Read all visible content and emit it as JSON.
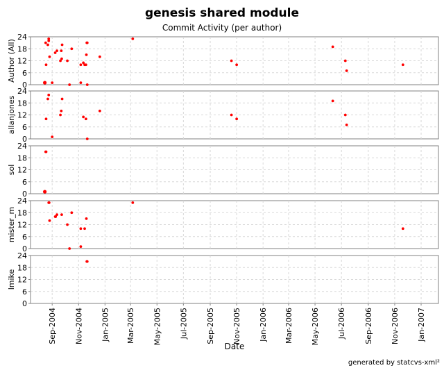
{
  "chart_data": {
    "type": "scatter",
    "title": "genesis shared module",
    "subtitle": "Commit Activity (per author)",
    "xlabel": "Date",
    "footer": "generated by statcvs-xml²",
    "x_ticks": [
      "Sep-2004",
      "Nov-2004",
      "Jan-2005",
      "Mar-2005",
      "May-2005",
      "Jul-2005",
      "Sep-2005",
      "Nov-2005",
      "Jan-2006",
      "Mar-2006",
      "May-2006",
      "Jul-2006",
      "Sep-2006",
      "Nov-2006",
      "Jan-2007"
    ],
    "x_tick_dates": [
      "2004-09-01",
      "2004-11-01",
      "2005-01-01",
      "2005-03-01",
      "2005-05-01",
      "2005-07-01",
      "2005-09-01",
      "2005-11-01",
      "2006-01-01",
      "2006-03-01",
      "2006-05-01",
      "2006-07-01",
      "2006-09-01",
      "2006-11-01",
      "2007-01-01"
    ],
    "xlim": [
      "2004-07-13",
      "2007-02-10"
    ],
    "ylim": [
      0,
      24
    ],
    "y_ticks": [
      0,
      6,
      12,
      18,
      24
    ],
    "grid": true,
    "point_color": "#ff0000",
    "panels": [
      {
        "ylabel": "Author (All)",
        "points": [
          {
            "x": "2004-08-15",
            "y": 1
          },
          {
            "x": "2004-08-15",
            "y": 1
          },
          {
            "x": "2004-08-17",
            "y": 21
          },
          {
            "x": "2004-08-18",
            "y": 10
          },
          {
            "x": "2004-08-22",
            "y": 20
          },
          {
            "x": "2004-08-24",
            "y": 22
          },
          {
            "x": "2004-08-24",
            "y": 23
          },
          {
            "x": "2004-08-26",
            "y": 14
          },
          {
            "x": "2004-09-01",
            "y": 1
          },
          {
            "x": "2004-09-08",
            "y": 16
          },
          {
            "x": "2004-09-12",
            "y": 17
          },
          {
            "x": "2004-09-20",
            "y": 12
          },
          {
            "x": "2004-09-22",
            "y": 17
          },
          {
            "x": "2004-09-23",
            "y": 13
          },
          {
            "x": "2004-09-24",
            "y": 20
          },
          {
            "x": "2004-10-06",
            "y": 12
          },
          {
            "x": "2004-10-11",
            "y": 0
          },
          {
            "x": "2004-10-16",
            "y": 18
          },
          {
            "x": "2004-11-06",
            "y": 10
          },
          {
            "x": "2004-11-06",
            "y": 1
          },
          {
            "x": "2004-11-12",
            "y": 11
          },
          {
            "x": "2004-11-15",
            "y": 10
          },
          {
            "x": "2004-11-18",
            "y": 10
          },
          {
            "x": "2004-11-19",
            "y": 15
          },
          {
            "x": "2004-11-20",
            "y": 21
          },
          {
            "x": "2004-11-21",
            "y": 21
          },
          {
            "x": "2004-11-21",
            "y": 0
          },
          {
            "x": "2004-12-20",
            "y": 14
          },
          {
            "x": "2005-03-06",
            "y": 23
          },
          {
            "x": "2005-10-20",
            "y": 12
          },
          {
            "x": "2005-11-01",
            "y": 10
          },
          {
            "x": "2006-06-11",
            "y": 19
          },
          {
            "x": "2006-07-10",
            "y": 12
          },
          {
            "x": "2006-07-13",
            "y": 7
          },
          {
            "x": "2006-11-20",
            "y": 10
          }
        ]
      },
      {
        "ylabel": "allanjones",
        "points": [
          {
            "x": "2004-08-18",
            "y": 10
          },
          {
            "x": "2004-08-22",
            "y": 20
          },
          {
            "x": "2004-08-24",
            "y": 22
          },
          {
            "x": "2004-09-01",
            "y": 1
          },
          {
            "x": "2004-09-20",
            "y": 12
          },
          {
            "x": "2004-09-22",
            "y": 14
          },
          {
            "x": "2004-09-24",
            "y": 20
          },
          {
            "x": "2004-11-12",
            "y": 11
          },
          {
            "x": "2004-11-18",
            "y": 10
          },
          {
            "x": "2004-11-21",
            "y": 0
          },
          {
            "x": "2004-12-20",
            "y": 14
          },
          {
            "x": "2005-10-20",
            "y": 12
          },
          {
            "x": "2005-11-01",
            "y": 10
          },
          {
            "x": "2006-06-11",
            "y": 19
          },
          {
            "x": "2006-07-10",
            "y": 12
          },
          {
            "x": "2006-07-13",
            "y": 7
          }
        ]
      },
      {
        "ylabel": "sol",
        "points": [
          {
            "x": "2004-08-15",
            "y": 1
          },
          {
            "x": "2004-08-15",
            "y": 1
          },
          {
            "x": "2004-08-17",
            "y": 21
          },
          {
            "x": "2004-08-18",
            "y": 21
          }
        ]
      },
      {
        "ylabel": "mister_m",
        "points": [
          {
            "x": "2004-08-24",
            "y": 23
          },
          {
            "x": "2004-08-25",
            "y": 23
          },
          {
            "x": "2004-08-26",
            "y": 14
          },
          {
            "x": "2004-09-08",
            "y": 16
          },
          {
            "x": "2004-09-09",
            "y": 16
          },
          {
            "x": "2004-09-12",
            "y": 17
          },
          {
            "x": "2004-09-23",
            "y": 17
          },
          {
            "x": "2004-10-06",
            "y": 12
          },
          {
            "x": "2004-10-11",
            "y": 0
          },
          {
            "x": "2004-10-16",
            "y": 18
          },
          {
            "x": "2004-11-06",
            "y": 10
          },
          {
            "x": "2004-11-06",
            "y": 1
          },
          {
            "x": "2004-11-15",
            "y": 10
          },
          {
            "x": "2004-11-19",
            "y": 15
          },
          {
            "x": "2005-03-06",
            "y": 23
          },
          {
            "x": "2006-11-20",
            "y": 10
          }
        ]
      },
      {
        "ylabel": "lmike",
        "points": [
          {
            "x": "2004-11-20",
            "y": 21
          },
          {
            "x": "2004-11-21",
            "y": 21
          }
        ]
      }
    ]
  }
}
